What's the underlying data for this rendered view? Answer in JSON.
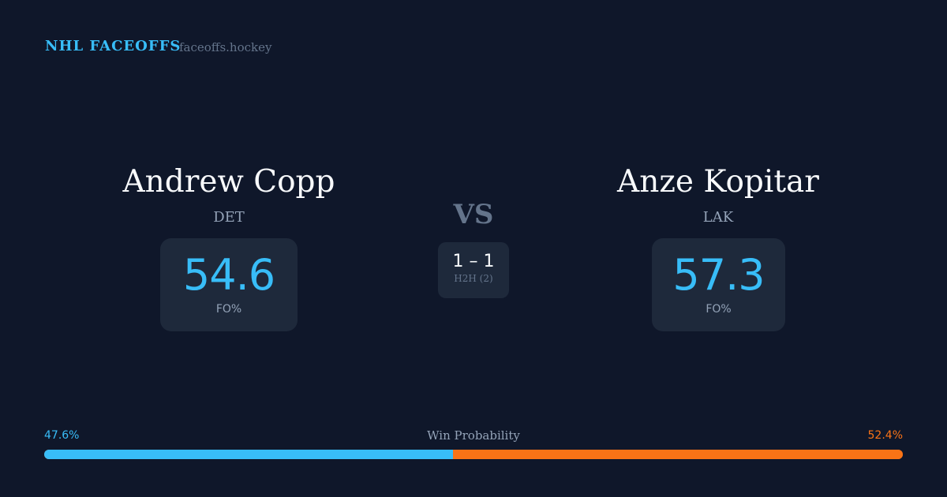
{
  "header": {
    "brand": "NHL FACEOFFS",
    "site": "faceoffs.hockey"
  },
  "left": {
    "name": "Andrew Copp",
    "team": "DET",
    "fo_pct": "54.6",
    "fo_label": "FO%"
  },
  "right": {
    "name": "Anze Kopitar",
    "team": "LAK",
    "fo_pct": "57.3",
    "fo_label": "FO%"
  },
  "center": {
    "vs": "VS",
    "h2h_score": "1 – 1",
    "h2h_label": "H2H (2)"
  },
  "win_prob": {
    "label": "Win Probability",
    "left": "47.6%",
    "right": "52.4%",
    "left_value": 47.6,
    "left_color": "#38bdf8",
    "right_color": "#f97316"
  }
}
